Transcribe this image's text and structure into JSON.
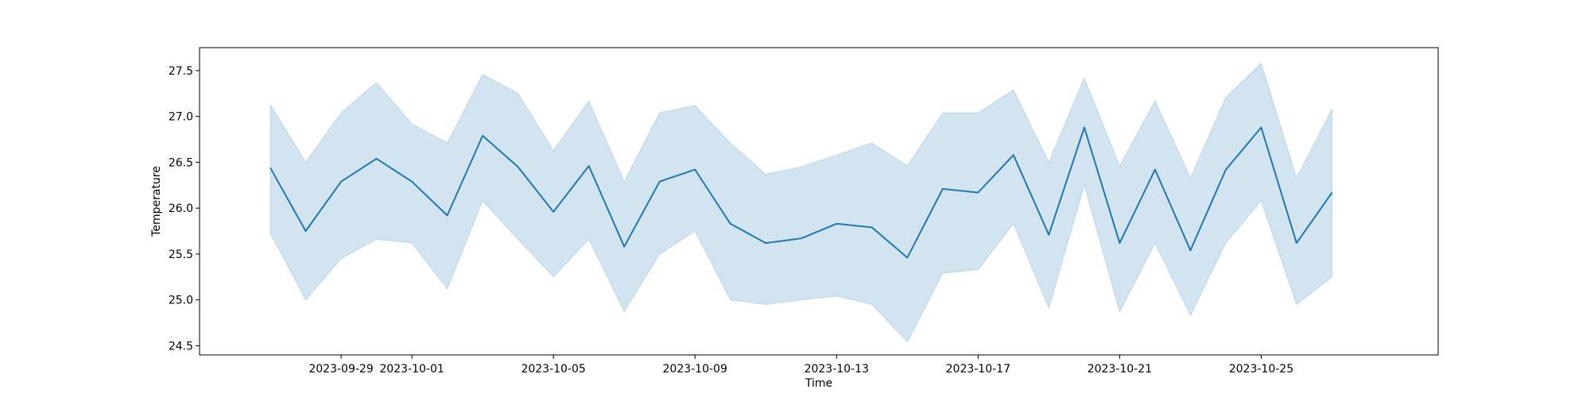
{
  "chart_data": {
    "type": "line",
    "xlabel": "Time",
    "ylabel": "Temperature",
    "grid": false,
    "x_type": "date",
    "xlim": [
      "2023-09-25",
      "2023-10-30"
    ],
    "ylim": [
      24.4,
      27.75
    ],
    "x_ticks": [
      "2023-09-29",
      "2023-10-01",
      "2023-10-05",
      "2023-10-09",
      "2023-10-13",
      "2023-10-17",
      "2023-10-21",
      "2023-10-25"
    ],
    "y_ticks": [
      "24.5",
      "25.0",
      "25.5",
      "26.0",
      "26.5",
      "27.0",
      "27.5"
    ],
    "line_color": "#1f77b4",
    "band_color": "#1f77b4",
    "x": [
      "2023-09-27",
      "2023-09-28",
      "2023-09-29",
      "2023-09-30",
      "2023-10-01",
      "2023-10-02",
      "2023-10-03",
      "2023-10-04",
      "2023-10-05",
      "2023-10-06",
      "2023-10-07",
      "2023-10-08",
      "2023-10-09",
      "2023-10-10",
      "2023-10-11",
      "2023-10-12",
      "2023-10-13",
      "2023-10-14",
      "2023-10-15",
      "2023-10-16",
      "2023-10-17",
      "2023-10-18",
      "2023-10-19",
      "2023-10-20",
      "2023-10-21",
      "2023-10-22",
      "2023-10-23",
      "2023-10-24",
      "2023-10-25",
      "2023-10-26",
      "2023-10-27"
    ],
    "series": [
      {
        "values": [
          26.44,
          25.75,
          26.29,
          26.54,
          26.29,
          25.92,
          26.79,
          26.45,
          25.96,
          26.46,
          25.58,
          26.29,
          26.42,
          25.83,
          25.62,
          25.67,
          25.83,
          25.79,
          25.46,
          26.21,
          26.17,
          26.58,
          25.71,
          26.88,
          25.62,
          26.42,
          25.54,
          26.42,
          26.88,
          25.62,
          26.17
        ],
        "lower": [
          25.73,
          25.0,
          25.45,
          25.66,
          25.62,
          25.12,
          26.08,
          25.66,
          25.25,
          25.66,
          24.87,
          25.5,
          25.75,
          25.0,
          24.95,
          25.0,
          25.04,
          24.95,
          24.54,
          25.29,
          25.33,
          25.83,
          24.91,
          26.25,
          24.87,
          25.62,
          24.83,
          25.62,
          26.08,
          24.95,
          25.25
        ],
        "upper": [
          27.13,
          26.5,
          27.04,
          27.37,
          26.92,
          26.71,
          27.46,
          27.25,
          26.63,
          27.17,
          26.29,
          27.04,
          27.12,
          26.71,
          26.37,
          26.45,
          26.58,
          26.71,
          26.46,
          27.04,
          27.04,
          27.29,
          26.5,
          27.42,
          26.46,
          27.17,
          26.33,
          27.21,
          27.58,
          26.33,
          27.08
        ]
      }
    ]
  }
}
